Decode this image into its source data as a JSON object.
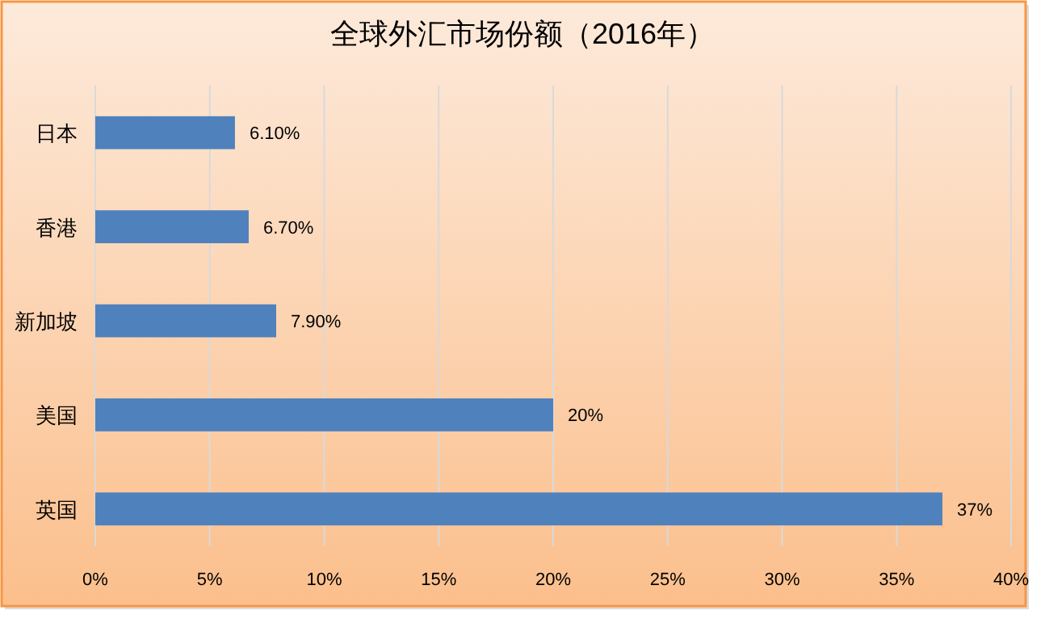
{
  "chart_data": {
    "type": "bar",
    "orientation": "horizontal",
    "title": "全球外汇市场份额（2016年）",
    "categories": [
      "日本",
      "香港",
      "新加坡",
      "美国",
      "英国"
    ],
    "values": [
      6.1,
      6.7,
      7.9,
      20,
      37
    ],
    "value_labels": [
      "6.10%",
      "6.70%",
      "7.90%",
      "20%",
      "37%"
    ],
    "color": "#4f81bd",
    "xlim": [
      0,
      40
    ],
    "xticks": [
      {
        "value": 0,
        "label": "0%"
      },
      {
        "value": 5,
        "label": "5%"
      },
      {
        "value": 10,
        "label": "10%"
      },
      {
        "value": 15,
        "label": "15%"
      },
      {
        "value": 20,
        "label": "20%"
      },
      {
        "value": 25,
        "label": "25%"
      },
      {
        "value": 30,
        "label": "30%"
      },
      {
        "value": 35,
        "label": "35%"
      },
      {
        "value": 40,
        "label": "40%"
      }
    ],
    "grid": "x"
  }
}
